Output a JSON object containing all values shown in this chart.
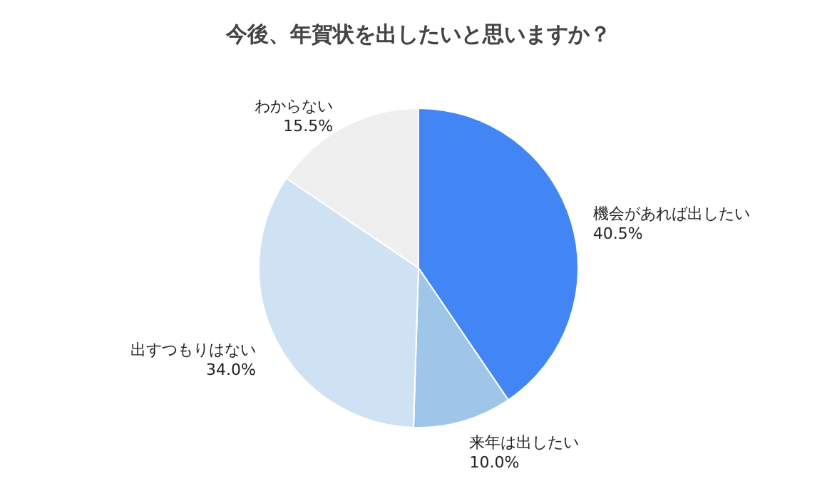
{
  "chart_data": {
    "type": "pie",
    "title": "今後、年賀状を出したいと思いますか？",
    "categories": [
      "機会があれば出したい",
      "来年は出したい",
      "出すつもりはない",
      "わからない"
    ],
    "values": [
      40.5,
      10.0,
      34.0,
      15.5
    ],
    "value_labels": [
      "40.5%",
      "10.0%",
      "34.0%",
      "15.5%"
    ],
    "colors": [
      "#4285f4",
      "#9fc5e8",
      "#cfe2f3",
      "#efefef"
    ],
    "legend": false
  }
}
